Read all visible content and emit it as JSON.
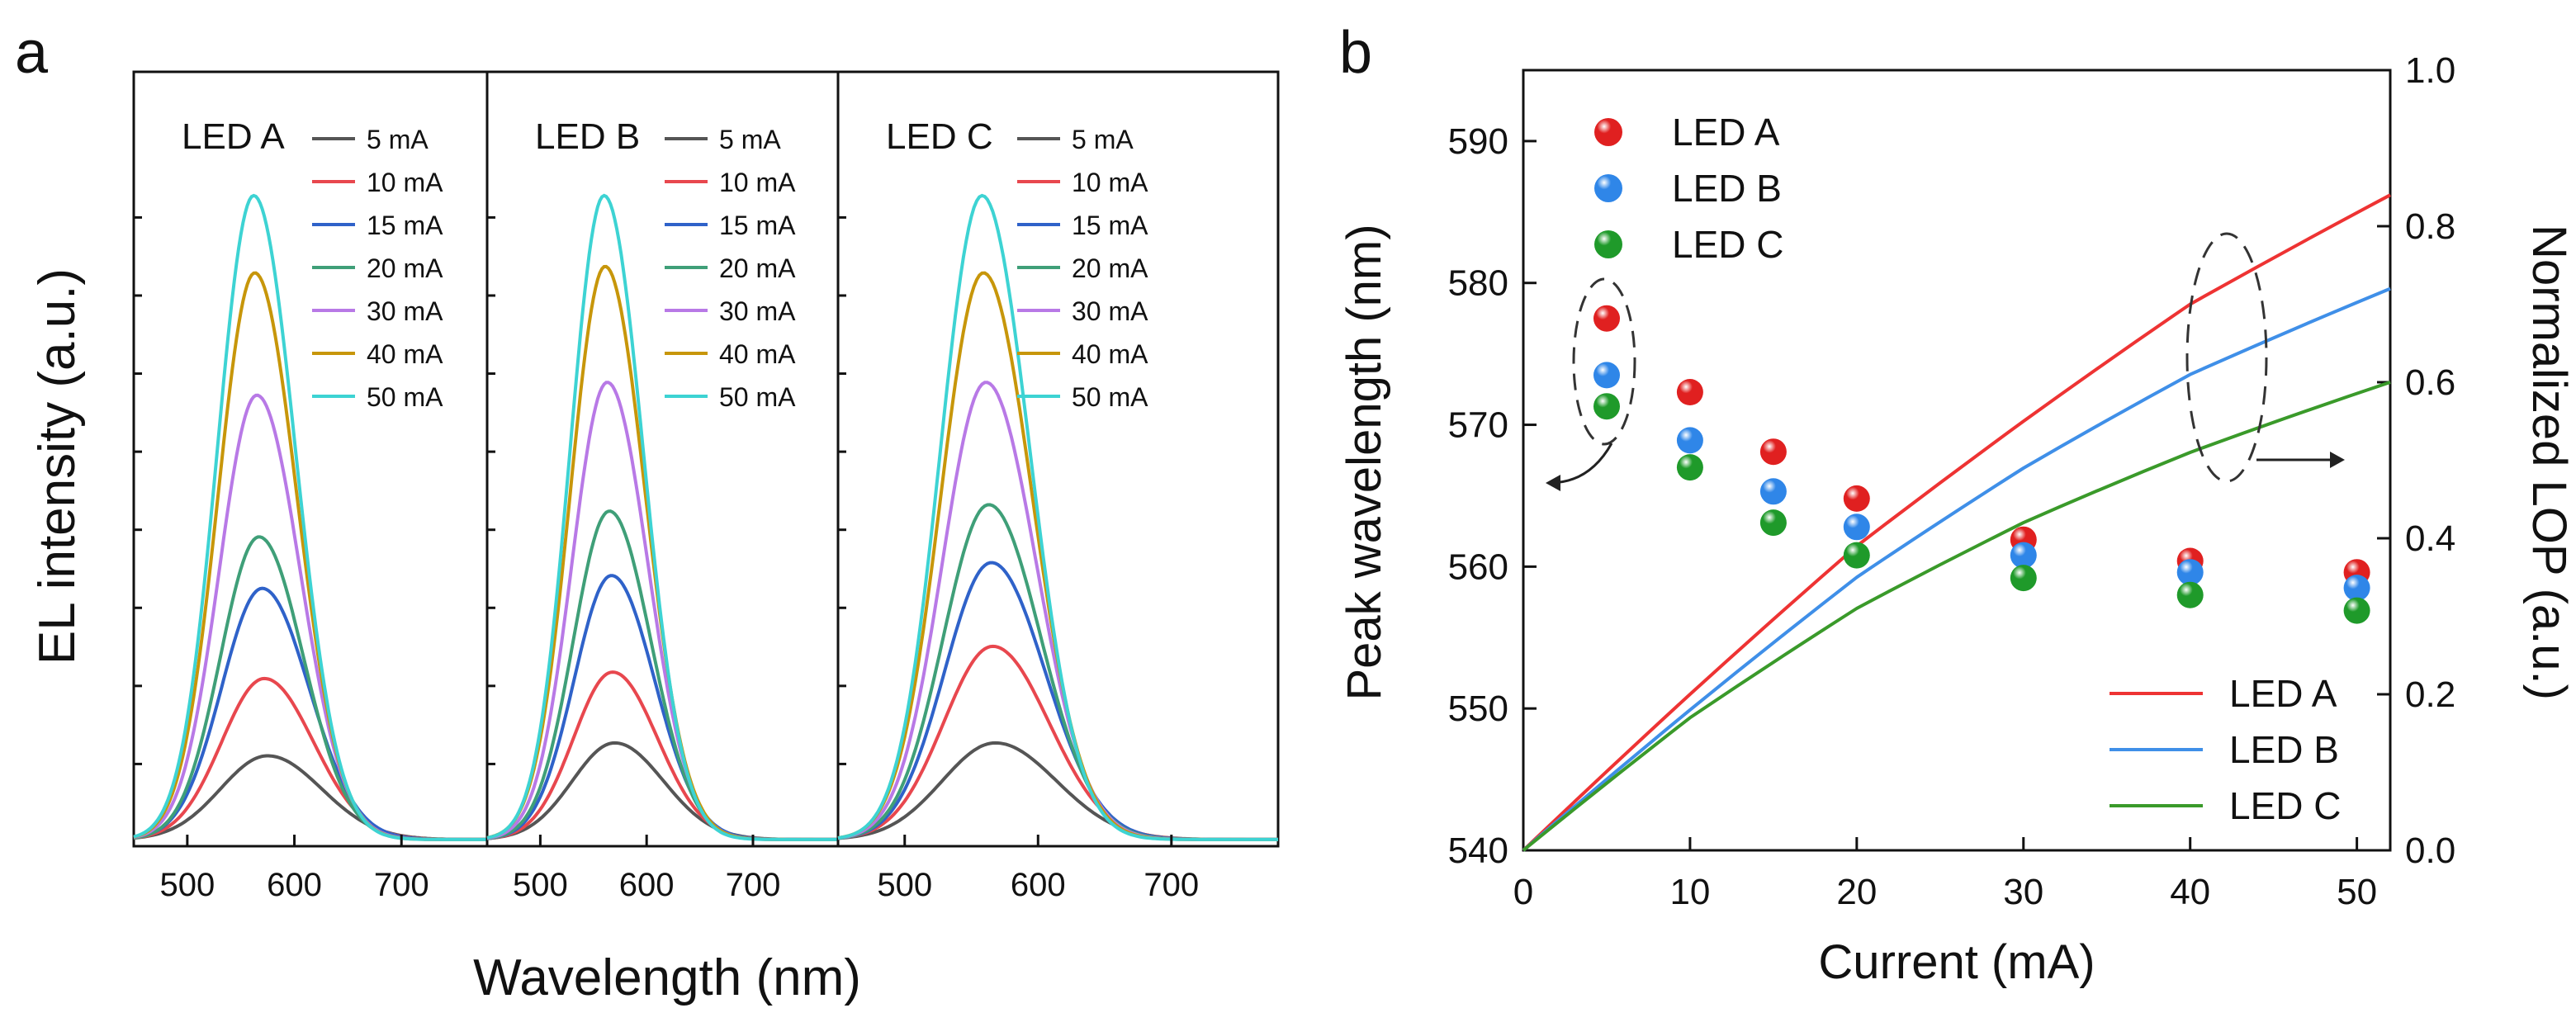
{
  "chart_data": [
    {
      "panel_label": "a",
      "type": "line",
      "xlabel": "Wavelength (nm)",
      "ylabel": "EL intensity (a.u.)",
      "xlim": [
        450,
        780
      ],
      "ylim": [
        0,
        1.05
      ],
      "x_ticks": [
        "500",
        "600",
        "700"
      ],
      "x_tick_values": [
        500,
        600,
        700
      ],
      "currents": [
        "5 mA",
        "10 mA",
        "15 mA",
        "20 mA",
        "30 mA",
        "40 mA",
        "50 mA"
      ],
      "colors": [
        "#555555",
        "#e8474e",
        "#2f62c9",
        "#3f9f78",
        "#b879e6",
        "#c7960a",
        "#3dd3d3"
      ],
      "subplots": [
        {
          "name": "LED A",
          "peak_nm": [
            575,
            572,
            570,
            567,
            565,
            563,
            562
          ],
          "fwhm_nm": [
            110,
            100,
            95,
            90,
            88,
            86,
            85
          ],
          "peak_intensity": [
            0.13,
            0.25,
            0.39,
            0.47,
            0.69,
            0.88,
            1.0
          ]
        },
        {
          "name": "LED B",
          "peak_nm": [
            570,
            568,
            567,
            565,
            563,
            561,
            560
          ],
          "fwhm_nm": [
            100,
            92,
            88,
            85,
            83,
            82,
            80
          ],
          "peak_intensity": [
            0.15,
            0.26,
            0.41,
            0.51,
            0.71,
            0.89,
            1.0
          ]
        },
        {
          "name": "LED C",
          "peak_nm": [
            568,
            566,
            565,
            563,
            561,
            559,
            558
          ],
          "fwhm_nm": [
            100,
            92,
            88,
            85,
            82,
            80,
            78
          ],
          "peak_intensity": [
            0.15,
            0.3,
            0.43,
            0.52,
            0.71,
            0.88,
            1.0
          ]
        }
      ]
    },
    {
      "panel_label": "b",
      "type": "scatter+line",
      "xlabel": "Current (mA)",
      "ylabel_left": "Peak wavelength (nm)",
      "ylabel_right": "Normalized LOP (a.u.)",
      "xlim": [
        0,
        52
      ],
      "ylim_left": [
        540,
        595
      ],
      "ylim_right": [
        0,
        1.0
      ],
      "x_ticks": [
        "0",
        "10",
        "20",
        "30",
        "40",
        "50"
      ],
      "x_tick_values": [
        0,
        10,
        20,
        30,
        40,
        50
      ],
      "y_left_ticks": [
        "540",
        "550",
        "560",
        "570",
        "580",
        "590"
      ],
      "y_left_tick_values": [
        540,
        550,
        560,
        570,
        580,
        590
      ],
      "y_right_ticks": [
        "0.0",
        "0.2",
        "0.4",
        "0.6",
        "0.8",
        "1.0"
      ],
      "y_right_tick_values": [
        0,
        0.2,
        0.4,
        0.6,
        0.8,
        1.0
      ],
      "x": [
        5,
        10,
        15,
        20,
        30,
        40,
        50
      ],
      "peak_wavelength_series": [
        {
          "name": "LED A",
          "color": "#e02020",
          "values": [
            577.5,
            572.3,
            568.1,
            564.8,
            561.9,
            560.4,
            559.6
          ]
        },
        {
          "name": "LED B",
          "color": "#2f86e8",
          "values": [
            573.5,
            568.9,
            565.3,
            562.8,
            560.8,
            559.6,
            558.5
          ]
        },
        {
          "name": "LED C",
          "color": "#1f9a2a",
          "values": [
            571.3,
            567.0,
            563.1,
            560.8,
            559.2,
            558.0,
            556.9
          ]
        }
      ],
      "lop_series": [
        {
          "name": "LED A",
          "color": "#ee3333",
          "x": [
            0,
            10,
            20,
            30,
            40,
            52
          ],
          "values": [
            0,
            0.2,
            0.39,
            0.55,
            0.7,
            0.84
          ]
        },
        {
          "name": "LED B",
          "color": "#3f8fe8",
          "x": [
            0,
            10,
            20,
            30,
            40,
            52
          ],
          "values": [
            0,
            0.18,
            0.35,
            0.49,
            0.61,
            0.72
          ]
        },
        {
          "name": "LED C",
          "color": "#3a9a2a",
          "x": [
            0,
            10,
            20,
            30,
            40,
            52
          ],
          "values": [
            0,
            0.17,
            0.31,
            0.42,
            0.51,
            0.6
          ]
        }
      ]
    }
  ]
}
